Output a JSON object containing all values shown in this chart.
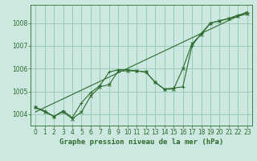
{
  "title": "Graphe pression niveau de la mer (hPa)",
  "background_color": "#cce8e0",
  "grid_color": "#99ccbb",
  "line_color": "#2d6b2d",
  "ylim": [
    1003.5,
    1008.8
  ],
  "yticks": [
    1004,
    1005,
    1006,
    1007,
    1008
  ],
  "xlim": [
    -0.5,
    23.5
  ],
  "xticks": [
    0,
    1,
    2,
    3,
    4,
    5,
    6,
    7,
    8,
    9,
    10,
    11,
    12,
    13,
    14,
    15,
    16,
    17,
    18,
    19,
    20,
    21,
    22,
    23
  ],
  "series1": [
    1004.3,
    1004.1,
    1003.9,
    1004.1,
    1003.8,
    1004.1,
    1004.8,
    1005.2,
    1005.3,
    1005.9,
    1005.9,
    1005.9,
    1005.85,
    1005.4,
    1005.1,
    1005.1,
    1006.0,
    1007.1,
    1007.5,
    1008.0,
    1008.1,
    1008.2,
    1008.3,
    1008.4
  ],
  "series2": [
    1004.3,
    1004.15,
    1003.9,
    1004.15,
    1003.85,
    1004.5,
    1004.95,
    1005.25,
    1005.85,
    1005.95,
    1005.95,
    1005.9,
    1005.85,
    1005.4,
    1005.1,
    1005.15,
    1005.2,
    1007.0,
    1007.55,
    1008.0,
    1008.1,
    1008.2,
    1008.35,
    1008.45
  ],
  "trend_x": [
    0,
    23
  ],
  "trend_y": [
    1004.1,
    1008.5
  ],
  "title_fontsize": 6.5,
  "tick_fontsize": 5.5
}
